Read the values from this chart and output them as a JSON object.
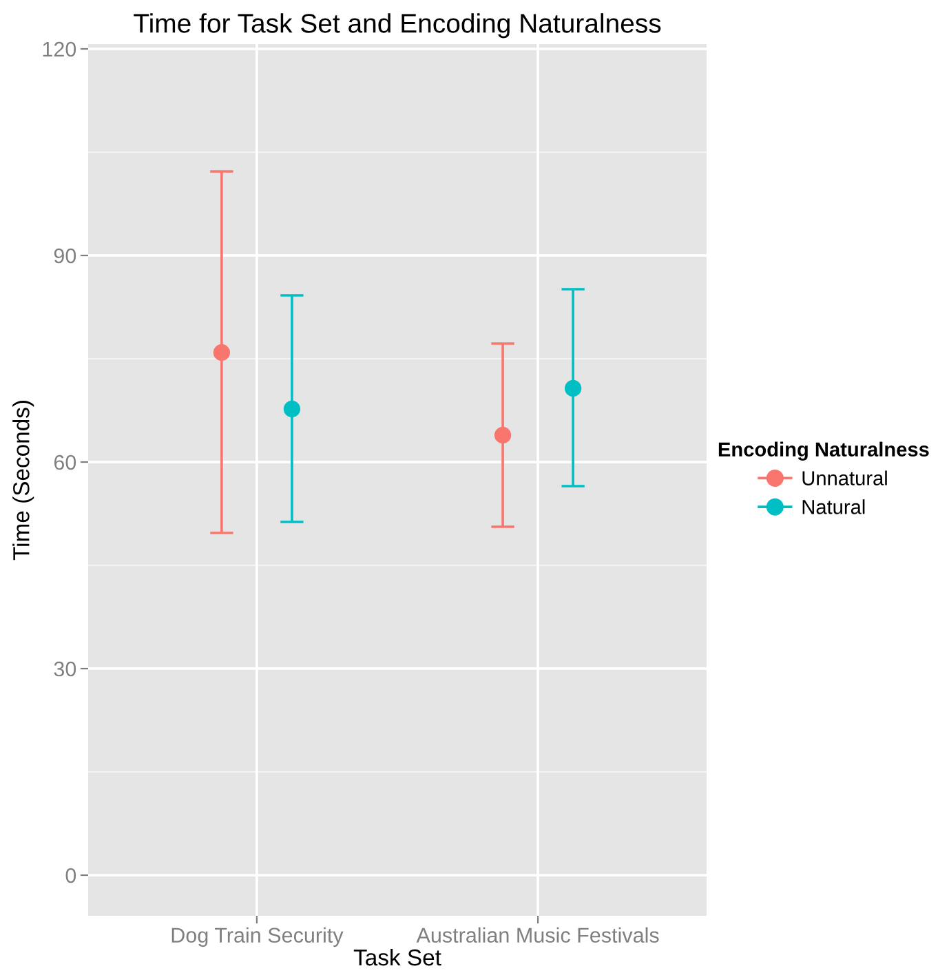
{
  "chart_data": {
    "type": "scatter",
    "title": "Time for Task Set and Encoding Naturalness",
    "xlabel": "Task Set",
    "ylabel": "Time (Seconds)",
    "legend_title": "Encoding Naturalness",
    "categories": [
      "Dog Train Security",
      "Australian Music Festivals"
    ],
    "series": [
      {
        "name": "Unnatural",
        "color": "#f8766d",
        "values": [
          75.9,
          63.9
        ],
        "errors": [
          [
            49.7,
            102.2
          ],
          [
            50.6,
            77.2
          ]
        ]
      },
      {
        "name": "Natural",
        "color": "#00bfc4",
        "values": [
          67.7,
          70.7
        ],
        "errors": [
          [
            51.3,
            84.2
          ],
          [
            56.5,
            85.1
          ]
        ]
      }
    ],
    "ylim": [
      -5.9,
      120.7
    ],
    "yticks": [
      0,
      30,
      60,
      90,
      120
    ],
    "grid": true,
    "legend": "right",
    "marker": "circle"
  }
}
